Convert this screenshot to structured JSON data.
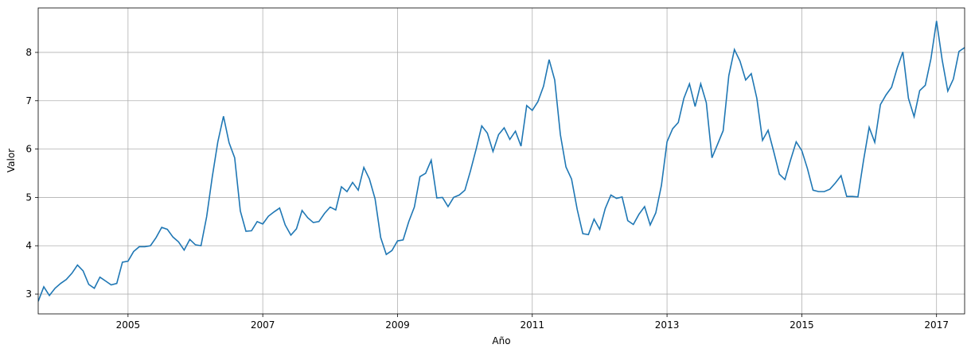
{
  "chart_data": {
    "type": "line",
    "x_label": "Año",
    "y_label": "Valor",
    "color": "#1f77b4",
    "grid": true,
    "xlim": [
      2003.667,
      2017.417
    ],
    "ylim": [
      2.59,
      8.92
    ],
    "xticks": [
      2005,
      2007,
      2009,
      2011,
      2013,
      2015,
      2017
    ],
    "yticks": [
      3,
      4,
      5,
      6,
      7,
      8
    ],
    "x": [
      2003.667,
      2003.75,
      2003.833,
      2003.917,
      2004,
      2004.083,
      2004.167,
      2004.25,
      2004.333,
      2004.417,
      2004.5,
      2004.583,
      2004.667,
      2004.75,
      2004.833,
      2004.917,
      2005,
      2005.083,
      2005.167,
      2005.25,
      2005.333,
      2005.417,
      2005.5,
      2005.583,
      2005.667,
      2005.75,
      2005.833,
      2005.917,
      2006,
      2006.083,
      2006.167,
      2006.25,
      2006.333,
      2006.417,
      2006.5,
      2006.583,
      2006.667,
      2006.75,
      2006.833,
      2006.917,
      2007,
      2007.083,
      2007.167,
      2007.25,
      2007.333,
      2007.417,
      2007.5,
      2007.583,
      2007.667,
      2007.75,
      2007.833,
      2007.917,
      2008,
      2008.083,
      2008.167,
      2008.25,
      2008.333,
      2008.417,
      2008.5,
      2008.583,
      2008.667,
      2008.75,
      2008.833,
      2008.917,
      2009,
      2009.083,
      2009.167,
      2009.25,
      2009.333,
      2009.417,
      2009.5,
      2009.583,
      2009.667,
      2009.75,
      2009.833,
      2009.917,
      2010,
      2010.083,
      2010.167,
      2010.25,
      2010.333,
      2010.417,
      2010.5,
      2010.583,
      2010.667,
      2010.75,
      2010.833,
      2010.917,
      2011,
      2011.083,
      2011.167,
      2011.25,
      2011.333,
      2011.417,
      2011.5,
      2011.583,
      2011.667,
      2011.75,
      2011.833,
      2011.917,
      2012,
      2012.083,
      2012.167,
      2012.25,
      2012.333,
      2012.417,
      2012.5,
      2012.583,
      2012.667,
      2012.75,
      2012.833,
      2012.917,
      2013,
      2013.083,
      2013.167,
      2013.25,
      2013.333,
      2013.417,
      2013.5,
      2013.583,
      2013.667,
      2013.75,
      2013.833,
      2013.917,
      2014,
      2014.083,
      2014.167,
      2014.25,
      2014.333,
      2014.417,
      2014.5,
      2014.583,
      2014.667,
      2014.75,
      2014.833,
      2014.917,
      2015,
      2015.083,
      2015.167,
      2015.25,
      2015.333,
      2015.417,
      2015.5,
      2015.583,
      2015.667,
      2015.75,
      2015.833,
      2015.917,
      2016,
      2016.083,
      2016.167,
      2016.25,
      2016.333,
      2016.417,
      2016.5,
      2016.583,
      2016.667,
      2016.75,
      2016.833,
      2016.917,
      2017,
      2017.083,
      2017.167,
      2017.25,
      2017.333,
      2017.417
    ],
    "values": [
      2.85,
      3.15,
      2.97,
      3.12,
      3.22,
      3.3,
      3.43,
      3.6,
      3.48,
      3.2,
      3.12,
      3.35,
      3.27,
      3.19,
      3.22,
      3.66,
      3.68,
      3.88,
      3.98,
      3.98,
      4.0,
      4.17,
      4.38,
      4.34,
      4.18,
      4.08,
      3.91,
      4.13,
      4.02,
      4.0,
      4.6,
      5.42,
      6.15,
      6.68,
      6.13,
      5.82,
      4.72,
      4.3,
      4.31,
      4.5,
      4.45,
      4.61,
      4.7,
      4.78,
      4.43,
      4.22,
      4.35,
      4.73,
      4.58,
      4.48,
      4.5,
      4.67,
      4.8,
      4.74,
      5.22,
      5.12,
      5.31,
      5.15,
      5.62,
      5.38,
      4.97,
      4.17,
      3.82,
      3.9,
      4.1,
      4.12,
      4.5,
      4.8,
      5.43,
      5.5,
      5.77,
      4.99,
      5.0,
      4.81,
      5.0,
      5.05,
      5.15,
      5.55,
      6.0,
      6.48,
      6.33,
      5.95,
      6.3,
      6.44,
      6.2,
      6.37,
      6.06,
      6.9,
      6.8,
      6.98,
      7.3,
      7.85,
      7.43,
      6.3,
      5.63,
      5.38,
      4.75,
      4.25,
      4.23,
      4.55,
      4.34,
      4.77,
      5.05,
      4.98,
      5.01,
      4.52,
      4.44,
      4.65,
      4.81,
      4.43,
      4.68,
      5.25,
      6.15,
      6.42,
      6.55,
      7.05,
      7.35,
      6.88,
      7.35,
      6.96,
      5.82,
      6.1,
      6.38,
      7.52,
      8.06,
      7.82,
      7.43,
      7.56,
      7.05,
      6.18,
      6.39,
      5.95,
      5.48,
      5.37,
      5.77,
      6.15,
      5.97,
      5.6,
      5.15,
      5.12,
      5.12,
      5.17,
      5.3,
      5.45,
      5.02,
      5.02,
      5.01,
      5.77,
      6.45,
      6.14,
      6.92,
      7.12,
      7.28,
      7.68,
      8.01,
      7.05,
      6.67,
      7.21,
      7.32,
      7.87,
      8.65,
      7.85,
      7.2,
      7.45,
      8.02,
      8.1
    ]
  }
}
